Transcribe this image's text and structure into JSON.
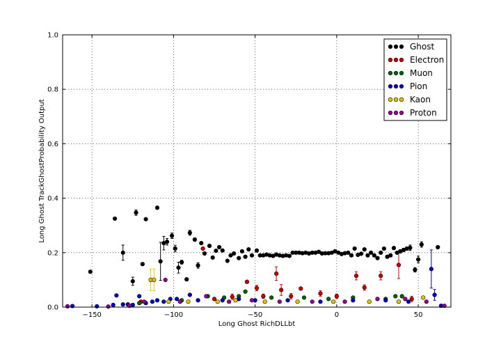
{
  "chart_data": {
    "type": "scatter",
    "xlabel": "Long Ghost RichDLLbt",
    "ylabel": "Long Ghost TrackGhostProbability Output",
    "xlim": [
      -168,
      70
    ],
    "ylim": [
      0,
      1.0
    ],
    "x_ticks": [
      "−150",
      "−100",
      "−50",
      "0",
      "50"
    ],
    "x_tick_values": [
      -150,
      -100,
      -50,
      0,
      50
    ],
    "y_ticks": [
      "0.0",
      "0.2",
      "0.4",
      "0.6",
      "0.8",
      "1.0"
    ],
    "y_tick_values": [
      0,
      0.2,
      0.4,
      0.6,
      0.8,
      1.0
    ],
    "grid": true,
    "legend_position": "top-right",
    "series": [
      {
        "name": "Ghost",
        "color": "#000000",
        "points": [
          [
            -151,
            0.13,
            0.004
          ],
          [
            -136,
            0.325,
            0.004
          ],
          [
            -131,
            0.2,
            0.028
          ],
          [
            -125,
            0.095,
            0.015
          ],
          [
            -123,
            0.347,
            0.01
          ],
          [
            -119,
            0.158,
            0.005
          ],
          [
            -117,
            0.323,
            0.004
          ],
          [
            -110,
            0.365,
            0.005
          ],
          [
            -108,
            0.168,
            0.07
          ],
          [
            -106,
            0.235,
            0.025
          ],
          [
            -104,
            0.24,
            0.012
          ],
          [
            -101,
            0.262,
            0.01
          ],
          [
            -99,
            0.215,
            0.012
          ],
          [
            -97,
            0.145,
            0.02
          ],
          [
            -95,
            0.165,
            0.007
          ],
          [
            -92,
            0.102,
            0.005
          ],
          [
            -90,
            0.273,
            0.009
          ],
          [
            -87,
            0.248,
            0.006
          ],
          [
            -85,
            0.153,
            0.01
          ],
          [
            -83,
            0.235,
            0.005
          ],
          [
            -81,
            0.197,
            0.005
          ],
          [
            -78,
            0.225,
            0.005
          ],
          [
            -76,
            0.182,
            0.005
          ],
          [
            -74,
            0.207,
            0.005
          ],
          [
            -72,
            0.22,
            0.005
          ],
          [
            -70,
            0.208,
            0.005
          ],
          [
            -67,
            0.17,
            0.005
          ],
          [
            -65,
            0.19,
            0.004
          ],
          [
            -63,
            0.197,
            0.004
          ],
          [
            -60,
            0.18,
            0.004
          ],
          [
            -58,
            0.205,
            0.004
          ],
          [
            -56,
            0.185,
            0.004
          ],
          [
            -54,
            0.212,
            0.004
          ],
          [
            -52,
            0.19,
            0.004
          ],
          [
            -49,
            0.208,
            0.004
          ],
          [
            -47,
            0.19,
            0.004
          ],
          [
            -45,
            0.19,
            0.004
          ],
          [
            -43,
            0.193,
            0.004
          ],
          [
            -41,
            0.19,
            0.004
          ],
          [
            -39,
            0.188,
            0.004
          ],
          [
            -37,
            0.193,
            0.004
          ],
          [
            -35,
            0.19,
            0.004
          ],
          [
            -33,
            0.188,
            0.004
          ],
          [
            -31,
            0.19,
            0.004
          ],
          [
            -29,
            0.188,
            0.004
          ],
          [
            -27,
            0.2,
            0.004
          ],
          [
            -25,
            0.2,
            0.004
          ],
          [
            -23,
            0.2,
            0.004
          ],
          [
            -21,
            0.198,
            0.004
          ],
          [
            -19,
            0.2,
            0.004
          ],
          [
            -17,
            0.197,
            0.004
          ],
          [
            -15,
            0.2,
            0.004
          ],
          [
            -13,
            0.2,
            0.004
          ],
          [
            -11,
            0.203,
            0.004
          ],
          [
            -9,
            0.197,
            0.004
          ],
          [
            -7,
            0.198,
            0.004
          ],
          [
            -5,
            0.198,
            0.004
          ],
          [
            -3,
            0.2,
            0.004
          ],
          [
            -1,
            0.205,
            0.004
          ],
          [
            1,
            0.2,
            0.004
          ],
          [
            3,
            0.195,
            0.004
          ],
          [
            5,
            0.198,
            0.004
          ],
          [
            7,
            0.2,
            0.004
          ],
          [
            9,
            0.19,
            0.004
          ],
          [
            11,
            0.215,
            0.004
          ],
          [
            13,
            0.192,
            0.004
          ],
          [
            15,
            0.196,
            0.004
          ],
          [
            17,
            0.212,
            0.004
          ],
          [
            19,
            0.19,
            0.004
          ],
          [
            21,
            0.2,
            0.004
          ],
          [
            23,
            0.19,
            0.005
          ],
          [
            25,
            0.18,
            0.005
          ],
          [
            27,
            0.2,
            0.005
          ],
          [
            29,
            0.215,
            0.005
          ],
          [
            31,
            0.185,
            0.005
          ],
          [
            33,
            0.19,
            0.005
          ],
          [
            35,
            0.217,
            0.005
          ],
          [
            37,
            0.2,
            0.005
          ],
          [
            39,
            0.205,
            0.006
          ],
          [
            41,
            0.21,
            0.006
          ],
          [
            43,
            0.215,
            0.006
          ],
          [
            45,
            0.218,
            0.01
          ],
          [
            48,
            0.137,
            0.008
          ],
          [
            50,
            0.175,
            0.012
          ],
          [
            52,
            0.23,
            0.01
          ],
          [
            62,
            0.22,
            0.005
          ]
        ]
      },
      {
        "name": "Electron",
        "color": "#cc0000",
        "points": [
          [
            -82,
            0.215,
            0.004
          ],
          [
            -64,
            0.038,
            0.01
          ],
          [
            -55,
            0.093,
            0.005
          ],
          [
            -49,
            0.07,
            0.01
          ],
          [
            -45,
            0.04,
            0.008
          ],
          [
            -37,
            0.123,
            0.025
          ],
          [
            -34,
            0.063,
            0.02
          ],
          [
            -28,
            0.04,
            0.01
          ],
          [
            -22,
            0.068,
            0.005
          ],
          [
            -10,
            0.05,
            0.01
          ],
          [
            0,
            0.04,
            0.008
          ],
          [
            12,
            0.115,
            0.015
          ],
          [
            17,
            0.072,
            0.01
          ],
          [
            27,
            0.115,
            0.015
          ],
          [
            38,
            0.155,
            0.05
          ],
          [
            46,
            0.03,
            0.01
          ],
          [
            -120,
            0.02,
            0.005
          ],
          [
            -75,
            0.03,
            0.005
          ]
        ]
      },
      {
        "name": "Muon",
        "color": "#006600",
        "points": [
          [
            -121,
            0.015,
            0.004
          ],
          [
            -95,
            0.025,
            0.004
          ],
          [
            -79,
            0.04,
            0.004
          ],
          [
            -69,
            0.035,
            0.004
          ],
          [
            -60,
            0.04,
            0.004
          ],
          [
            -56,
            0.057,
            0.004
          ],
          [
            -40,
            0.035,
            0.004
          ],
          [
            -20,
            0.035,
            0.004
          ],
          [
            -5,
            0.03,
            0.004
          ],
          [
            10,
            0.035,
            0.004
          ],
          [
            30,
            0.03,
            0.004
          ],
          [
            36,
            0.04,
            0.004
          ],
          [
            40,
            0.04,
            0.004
          ]
        ]
      },
      {
        "name": "Pion",
        "color": "#0000cc",
        "points": [
          [
            -162,
            0.004,
            0.002
          ],
          [
            -147,
            0.003,
            0.002
          ],
          [
            -137,
            0.008,
            0.002
          ],
          [
            -135,
            0.043,
            0.004
          ],
          [
            -131,
            0.01,
            0.002
          ],
          [
            -128,
            0.01,
            0.002
          ],
          [
            -125,
            0.008,
            0.002
          ],
          [
            -121,
            0.04,
            0.004
          ],
          [
            -117,
            0.015,
            0.002
          ],
          [
            -113,
            0.02,
            0.002
          ],
          [
            -110,
            0.025,
            0.002
          ],
          [
            -106,
            0.02,
            0.002
          ],
          [
            -102,
            0.03,
            0.002
          ],
          [
            -98,
            0.03,
            0.002
          ],
          [
            -90,
            0.045,
            0.003
          ],
          [
            -85,
            0.025,
            0.002
          ],
          [
            -70,
            0.025,
            0.002
          ],
          [
            -60,
            0.03,
            0.002
          ],
          [
            -50,
            0.025,
            0.002
          ],
          [
            -30,
            0.025,
            0.002
          ],
          [
            -10,
            0.02,
            0.002
          ],
          [
            10,
            0.025,
            0.002
          ],
          [
            30,
            0.025,
            0.002
          ],
          [
            44,
            0.02,
            0.002
          ],
          [
            58,
            0.14,
            0.07
          ],
          [
            60,
            0.045,
            0.02
          ],
          [
            64,
            0.005,
            0.002
          ]
        ]
      },
      {
        "name": "Kaon",
        "color": "#e6c800",
        "points": [
          [
            -114,
            0.1,
            0.04
          ],
          [
            -112,
            0.1,
            0.04
          ],
          [
            -103,
            0.02,
            0.003
          ],
          [
            -91,
            0.02,
            0.003
          ],
          [
            -73,
            0.02,
            0.003
          ],
          [
            -62,
            0.025,
            0.003
          ],
          [
            -44,
            0.02,
            0.003
          ],
          [
            -24,
            0.02,
            0.003
          ],
          [
            -2,
            0.02,
            0.003
          ],
          [
            20,
            0.02,
            0.003
          ],
          [
            38,
            0.02,
            0.003
          ],
          [
            53,
            0.035,
            0.004
          ]
        ]
      },
      {
        "name": "Proton",
        "color": "#990099",
        "points": [
          [
            -165,
            0.003,
            0.002
          ],
          [
            -140,
            0.002,
            0.002
          ],
          [
            -127,
            0.005,
            0.002
          ],
          [
            -118,
            0.02,
            0.003
          ],
          [
            -105,
            0.1,
            0.004
          ],
          [
            -96,
            0.02,
            0.003
          ],
          [
            -80,
            0.04,
            0.004
          ],
          [
            -66,
            0.02,
            0.003
          ],
          [
            -52,
            0.025,
            0.003
          ],
          [
            -35,
            0.02,
            0.003
          ],
          [
            -15,
            0.02,
            0.003
          ],
          [
            5,
            0.02,
            0.003
          ],
          [
            25,
            0.03,
            0.003
          ],
          [
            42,
            0.03,
            0.003
          ],
          [
            55,
            0.02,
            0.003
          ],
          [
            66,
            0.005,
            0.002
          ]
        ]
      }
    ]
  }
}
